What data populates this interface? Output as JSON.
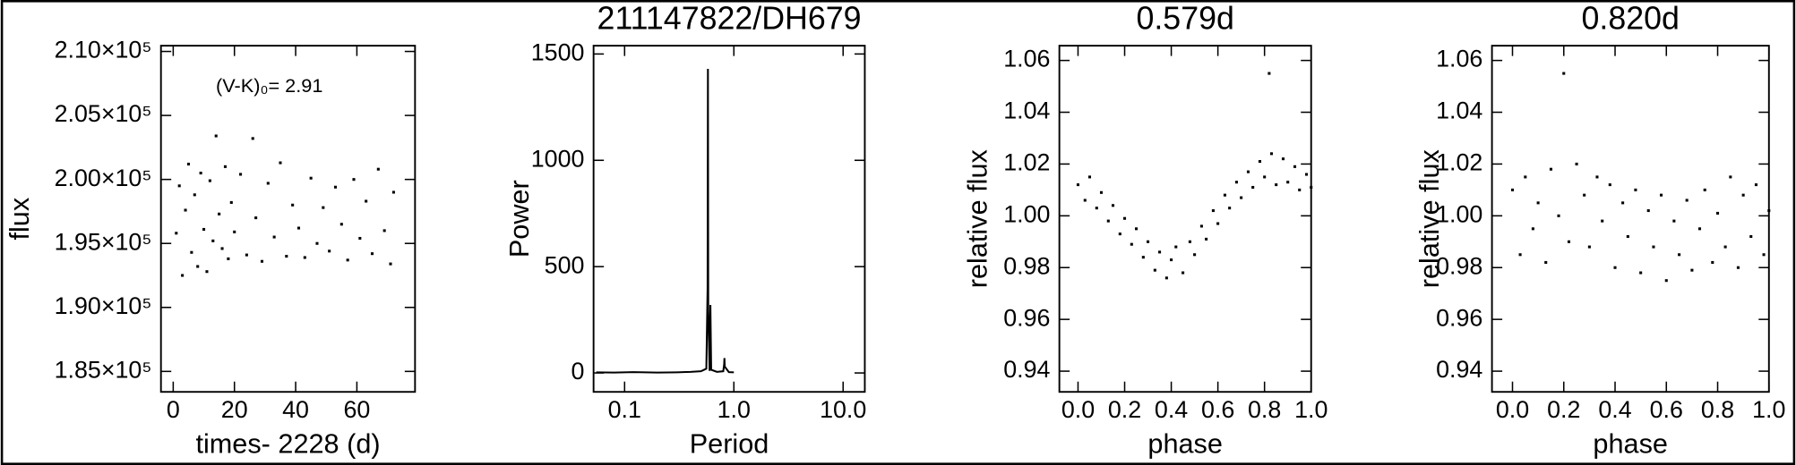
{
  "chart_data": [
    {
      "type": "scatter",
      "annotation": "(V-K)₀= 2.91",
      "x_label": "times- 2228 (d)",
      "y_label": "flux",
      "color": "#000000",
      "x": [
        1,
        2,
        3,
        4,
        5,
        6,
        7,
        8,
        9,
        10,
        11,
        12,
        13,
        14,
        15,
        16,
        17,
        18,
        19,
        20,
        22,
        24,
        26,
        27,
        29,
        31,
        33,
        35,
        37,
        39,
        41,
        43,
        45,
        47,
        49,
        51,
        53,
        55,
        57,
        59,
        61,
        63,
        65,
        67,
        69,
        71,
        72
      ],
      "values": [
        195800,
        199500,
        192500,
        197600,
        201200,
        194300,
        198800,
        193200,
        200500,
        196100,
        192800,
        199900,
        195200,
        203400,
        197300,
        194600,
        201000,
        193800,
        198200,
        195900,
        200400,
        194100,
        203200,
        197000,
        193600,
        199700,
        195500,
        201300,
        194000,
        198000,
        196200,
        193900,
        200100,
        195000,
        197800,
        194400,
        199400,
        196500,
        193700,
        200000,
        195400,
        198300,
        194200,
        200800,
        196000,
        193400,
        199000
      ],
      "xlim": [
        -4,
        79
      ],
      "xticks": [
        0,
        20,
        40,
        60
      ],
      "ylim": [
        183400,
        210450
      ],
      "yticks": [
        {
          "value": 185000,
          "label": "1.85×10⁵"
        },
        {
          "value": 190000,
          "label": "1.90×10⁵"
        },
        {
          "value": 195000,
          "label": "1.95×10⁵"
        },
        {
          "value": 200000,
          "label": "2.00×10⁵"
        },
        {
          "value": 205000,
          "label": "2.05×10⁵"
        },
        {
          "value": 210000,
          "label": "2.10×10⁵"
        }
      ]
    },
    {
      "type": "line",
      "title": "211147822/DH679",
      "x_label": "Period",
      "y_label": "Power",
      "color": "#000000",
      "xlog": true,
      "x": [
        0.055,
        0.08,
        0.12,
        0.2,
        0.3,
        0.4,
        0.5,
        0.56,
        0.575,
        0.579,
        0.583,
        0.6,
        0.61,
        0.62,
        0.7,
        0.8,
        0.815,
        0.82,
        0.825,
        0.9,
        1.0
      ],
      "values": [
        3,
        2,
        4,
        2,
        3,
        5,
        8,
        20,
        400,
        1430,
        300,
        10,
        320,
        15,
        5,
        8,
        40,
        70,
        30,
        4,
        3
      ],
      "xlim": [
        0.052,
        15.8
      ],
      "xticks": [
        0.1,
        {
          "value": 1,
          "label": "1.0"
        },
        {
          "value": 10,
          "label": "10.0"
        }
      ],
      "ylim": [
        -89,
        1539
      ],
      "yticks": [
        0,
        500,
        1000,
        1500
      ]
    },
    {
      "type": "scatter",
      "title": "0.579d",
      "x_label": "phase",
      "y_label": "relative flux",
      "color": "#000000",
      "x": [
        0.0,
        0.03,
        0.05,
        0.08,
        0.1,
        0.13,
        0.15,
        0.18,
        0.2,
        0.23,
        0.25,
        0.28,
        0.3,
        0.33,
        0.35,
        0.38,
        0.4,
        0.42,
        0.45,
        0.48,
        0.5,
        0.53,
        0.55,
        0.58,
        0.6,
        0.63,
        0.65,
        0.68,
        0.7,
        0.73,
        0.75,
        0.78,
        0.8,
        0.82,
        0.83,
        0.85,
        0.88,
        0.9,
        0.93,
        0.95,
        0.98,
        1.0
      ],
      "values": [
        1.012,
        1.006,
        1.015,
        1.003,
        1.009,
        0.998,
        1.004,
        0.993,
        0.999,
        0.989,
        0.995,
        0.984,
        0.99,
        0.979,
        0.986,
        0.976,
        0.983,
        0.988,
        0.978,
        0.99,
        0.985,
        0.996,
        0.991,
        1.002,
        0.997,
        1.008,
        1.003,
        1.013,
        1.007,
        1.017,
        1.011,
        1.021,
        1.015,
        1.055,
        1.024,
        1.012,
        1.022,
        1.013,
        1.019,
        1.01,
        1.016,
        1.011
      ],
      "xlim": [
        -0.08,
        1.0
      ],
      "xticks": [
        {
          "value": 0,
          "label": "0.0"
        },
        0.2,
        0.4,
        0.6,
        0.8,
        {
          "value": 1,
          "label": "1.0"
        }
      ],
      "ylim": [
        0.932,
        1.0657
      ],
      "yticks": [
        0.94,
        0.96,
        0.98,
        {
          "value": 1,
          "label": "1.00"
        },
        1.02,
        1.04,
        1.06
      ]
    },
    {
      "type": "scatter",
      "title": "0.820d",
      "x_label": "phase",
      "y_label": "relative flux",
      "color": "#000000",
      "x": [
        0.0,
        0.03,
        0.05,
        0.08,
        0.1,
        0.13,
        0.15,
        0.18,
        0.2,
        0.22,
        0.25,
        0.28,
        0.3,
        0.33,
        0.35,
        0.38,
        0.4,
        0.43,
        0.45,
        0.48,
        0.5,
        0.53,
        0.55,
        0.58,
        0.6,
        0.63,
        0.65,
        0.68,
        0.7,
        0.73,
        0.75,
        0.78,
        0.8,
        0.83,
        0.85,
        0.88,
        0.9,
        0.93,
        0.95,
        0.98,
        1.0
      ],
      "values": [
        1.01,
        0.985,
        1.015,
        0.995,
        1.005,
        0.982,
        1.018,
        1.0,
        1.055,
        0.99,
        1.02,
        1.008,
        0.988,
        1.015,
        0.998,
        1.012,
        0.98,
        1.005,
        0.992,
        1.01,
        0.978,
        1.002,
        0.988,
        1.008,
        0.975,
        0.998,
        0.985,
        1.006,
        0.979,
        0.995,
        1.01,
        0.982,
        1.001,
        0.988,
        1.015,
        0.98,
        1.008,
        0.992,
        1.012,
        0.985,
        1.002
      ],
      "xlim": [
        -0.08,
        1.0
      ],
      "xticks": [
        {
          "value": 0,
          "label": "0.0"
        },
        0.2,
        0.4,
        0.6,
        0.8,
        {
          "value": 1,
          "label": "1.0"
        }
      ],
      "ylim": [
        0.932,
        1.0657
      ],
      "yticks": [
        0.94,
        0.96,
        0.98,
        {
          "value": 1,
          "label": "1.00"
        },
        1.02,
        1.04,
        1.06
      ]
    }
  ]
}
